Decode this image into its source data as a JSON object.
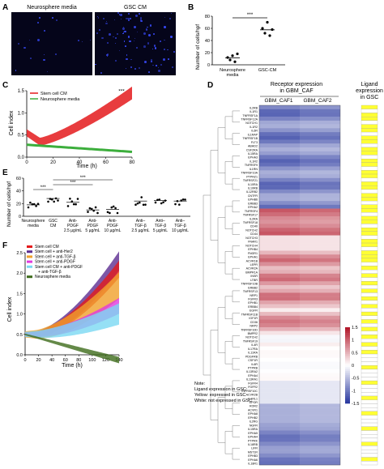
{
  "panels": {
    "A": {
      "letter": "A",
      "titles": [
        "Neurosphere media",
        "GSC CM"
      ],
      "dot_density": [
        18,
        90
      ]
    },
    "B": {
      "letter": "B",
      "ylabel": "Number of cells/hpf",
      "categories": [
        "Neurosphere\nmedia",
        "GSC-CM"
      ],
      "yticks": [
        "0",
        "20",
        "40",
        "60",
        "80"
      ],
      "sig": "***"
    },
    "C": {
      "letter": "C",
      "legend": [
        "Stem cell CM",
        "Neurosphere media"
      ],
      "ylabel": "Cell index",
      "xlabel": "Time (h)",
      "yticks": [
        "0.0",
        "0.5",
        "1.0",
        "1.5"
      ],
      "xticks": [
        "0",
        "20",
        "40",
        "60",
        "80"
      ],
      "sig": "***"
    },
    "D": {
      "letter": "D",
      "title_receptor": [
        "Receptor expression",
        "in GBM_CAF"
      ],
      "col_labels": [
        "GBM_CAF1",
        "GBM_CAF2"
      ],
      "title_ligand": [
        "Ligand",
        "expression",
        "in GSC"
      ],
      "genes": [
        "IL2RB",
        "IL1R1",
        "TNFRSF1A",
        "TNFRSF12A",
        "NOTCH1",
        "IL1R2",
        "IL6R",
        "IL1RAP",
        "TNFRSF1B",
        "FLT3",
        "ABHD2",
        "CSF2RA",
        "IL15RA",
        "EPHA3",
        "IL1R2",
        "TNFRSF9",
        "IL1RN",
        "TNFRSF10A",
        "PTPRZ1",
        "TNFRSF21",
        "IL10RA",
        "IL10RB",
        "IL12RB2",
        "CNTFR",
        "EPHB6",
        "ERBB3",
        "EPHA2",
        "TNFRSF4",
        "TNFRSF17",
        "IL2RA",
        "TNFRSF18",
        "CD40",
        "NOTCH2",
        "CD44",
        "NOTCH3",
        "FNAR1",
        "NOTCH4",
        "EPHB4",
        "FNGR1",
        "EPHA1",
        "ACVR1B",
        "LEPR",
        "ACVR2A",
        "BMPR1A",
        "INSR",
        "LTBR",
        "TNFRSF10B",
        "ERBB2",
        "TNFRSF13",
        "NRP1",
        "FGFR3",
        "EPHB1",
        "ERBB4",
        "EGFR",
        "TNFRSF11B",
        "IGF1R",
        "CD36",
        "NRP2",
        "TNFRSF10D",
        "BMPR2",
        "NOTCH2",
        "TNFRSF19",
        "IL4R",
        "IL17RA",
        "IL11RA",
        "PDGFRB",
        "CSF1R",
        "IL6R",
        "PTPRB",
        "IL13RA2",
        "EPHA4",
        "IL13RA1",
        "FGFR4",
        "FGFR2",
        "TNFRSF10C",
        "ACVR2B",
        "IL1RL1",
        "EPOR",
        "ROR2",
        "ACVR1",
        "EPHA8",
        "EPHB2",
        "IL2RG",
        "NGFR",
        "IL15RA",
        "EPHA5",
        "EPHA4",
        "PTPRK",
        "IL18RB",
        "LIFR",
        "MST1R",
        "EPHB3",
        "EPHA6",
        "IL18R1"
      ],
      "colorbar_ticks": [
        "1.5",
        "1",
        "0.5",
        "0",
        "-0.5",
        "-1",
        "-1.5"
      ],
      "note": [
        "Note:",
        "Ligand expression in GSC:",
        "Yellow: expressed in GSC",
        "White: not expressed in GSC"
      ]
    },
    "E": {
      "letter": "E",
      "ylabel": "Number of cells/hpf",
      "yticks": [
        "0",
        "20",
        "40",
        "60"
      ],
      "categories": [
        [
          "Neurosphere",
          "media"
        ],
        [
          "GSC",
          "CM"
        ],
        [
          "Anti-",
          "PDGF",
          "2.5 µg/mL"
        ],
        [
          "Anti-",
          "PDGF",
          "5 µg/mL"
        ],
        [
          "Anti-",
          "PDGF",
          "10 µg/mL"
        ],
        [
          "Anti–",
          "TGF-β",
          "2.5 µg/mL"
        ],
        [
          "Anti–",
          "TGF-β",
          "5 µg/mL"
        ],
        [
          "Anti–",
          "TGF-β",
          "10 µg/mL"
        ]
      ],
      "sig": [
        "***",
        "***",
        "***"
      ]
    },
    "F": {
      "letter": "F",
      "legend": [
        "Stem cell CM",
        "Stem cell + anti-Her2",
        "Stem cell + anti-TGF-β",
        "Stem cell + anti-PDGF",
        "Stem cell CM + anti-PDGF",
        "+ anti-TGF-β",
        "Neurosphere media"
      ],
      "ylabel": "Cell index",
      "xlabel": "Time (h)",
      "yticks": [
        "0.0",
        "0.5",
        "1.0",
        "1.5",
        "2.0",
        "2.5"
      ],
      "xticks": [
        "0",
        "20",
        "40",
        "60",
        "80",
        "100",
        "120",
        "140"
      ]
    }
  },
  "colors": {
    "red": "#e41a1c",
    "green": "#3cae3c",
    "purple": "#5c2d91",
    "orange": "#f0a02a",
    "magenta": "#e03adf",
    "cyan": "#7ad8f2",
    "darkgreen": "#3d6b1a",
    "yellow": "#ffff33",
    "blue": "#2b3aa0"
  }
}
